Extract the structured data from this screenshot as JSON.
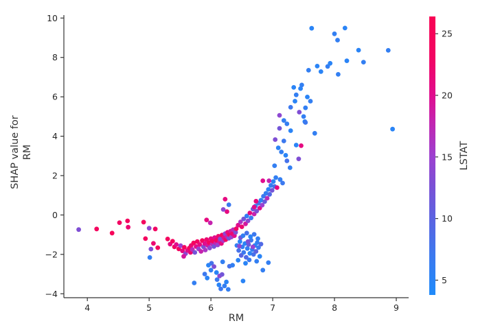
{
  "chart_data": {
    "type": "scatter",
    "title": "",
    "xlabel": "RM",
    "ylabel_line1": "SHAP value for",
    "ylabel_line2": "RM",
    "xlim": [
      3.62,
      9.2
    ],
    "ylim": [
      -4.2,
      10.15
    ],
    "xticks": [
      4,
      5,
      6,
      7,
      8,
      9
    ],
    "yticks": [
      -4,
      -2,
      0,
      2,
      4,
      6,
      8,
      10
    ],
    "grid": false,
    "marker_radius_px": 3.4,
    "text_color": "#333333",
    "spine_color": "#333333",
    "colorbar": {
      "label": "LSTAT",
      "ticks": [
        5,
        10,
        15,
        20,
        25
      ],
      "min": 3.8,
      "max": 26.4,
      "position": "right",
      "stops": [
        [
          3.8,
          "#1f8bfa"
        ],
        [
          7.0,
          "#3c79ef"
        ],
        [
          10.0,
          "#5b63e1"
        ],
        [
          13.0,
          "#7f4ed4"
        ],
        [
          15.0,
          "#9c41d0"
        ],
        [
          18.0,
          "#c523ae"
        ],
        [
          20.0,
          "#e00d8e"
        ],
        [
          23.0,
          "#f20563"
        ],
        [
          26.4,
          "#f80454"
        ]
      ]
    },
    "points_format": [
      "RM",
      "SHAP value for RM",
      "LSTAT"
    ],
    "points": [
      [
        3.86,
        -0.74,
        13
      ],
      [
        4.15,
        -0.71,
        24
      ],
      [
        4.4,
        -0.92,
        25
      ],
      [
        4.52,
        -0.39,
        23
      ],
      [
        4.65,
        -0.3,
        24
      ],
      [
        4.66,
        -0.62,
        22
      ],
      [
        4.91,
        -0.36,
        24
      ],
      [
        5.0,
        -0.67,
        14
      ],
      [
        5.1,
        -0.71,
        23
      ],
      [
        4.94,
        -1.2,
        24
      ],
      [
        5.07,
        -1.44,
        22
      ],
      [
        5.03,
        -1.73,
        13
      ],
      [
        5.14,
        -1.66,
        24
      ],
      [
        5.01,
        -2.16,
        6
      ],
      [
        5.3,
        -1.22,
        24
      ],
      [
        5.34,
        -1.48,
        21
      ],
      [
        5.38,
        -1.33,
        24
      ],
      [
        5.41,
        -1.62,
        23
      ],
      [
        5.44,
        -1.5,
        20
      ],
      [
        5.48,
        -1.72,
        24
      ],
      [
        5.51,
        -1.56,
        15
      ],
      [
        5.54,
        -1.82,
        21
      ],
      [
        5.57,
        -1.64,
        24
      ],
      [
        5.59,
        -1.96,
        14
      ],
      [
        5.62,
        -1.8,
        20
      ],
      [
        5.65,
        -1.68,
        24
      ],
      [
        5.56,
        -2.1,
        19
      ],
      [
        5.67,
        -1.9,
        22
      ],
      [
        5.68,
        -1.55,
        22
      ],
      [
        5.7,
        -1.75,
        17
      ],
      [
        5.72,
        -1.42,
        24
      ],
      [
        5.74,
        -1.9,
        12
      ],
      [
        5.76,
        -1.6,
        20
      ],
      [
        5.78,
        -1.35,
        23
      ],
      [
        5.8,
        -1.72,
        15
      ],
      [
        5.82,
        -1.5,
        21
      ],
      [
        5.84,
        -1.85,
        18
      ],
      [
        5.86,
        -1.3,
        24
      ],
      [
        5.88,
        -1.62,
        13
      ],
      [
        5.9,
        -1.45,
        20
      ],
      [
        5.91,
        -1.78,
        16
      ],
      [
        5.93,
        -1.25,
        22
      ],
      [
        5.95,
        -1.55,
        19
      ],
      [
        5.97,
        -1.4,
        24
      ],
      [
        5.98,
        -1.68,
        14
      ],
      [
        6.0,
        -1.2,
        21
      ],
      [
        6.02,
        -1.48,
        17
      ],
      [
        6.03,
        -1.32,
        23
      ],
      [
        6.05,
        -1.6,
        12
      ],
      [
        6.06,
        -1.15,
        20
      ],
      [
        6.08,
        -1.42,
        18
      ],
      [
        6.09,
        -1.28,
        24
      ],
      [
        6.11,
        -1.52,
        15
      ],
      [
        6.12,
        -1.08,
        22
      ],
      [
        6.14,
        -1.35,
        19
      ],
      [
        6.15,
        -1.22,
        13
      ],
      [
        6.17,
        -1.45,
        21
      ],
      [
        6.18,
        -1.02,
        24
      ],
      [
        6.2,
        -1.3,
        16
      ],
      [
        6.21,
        -1.15,
        20
      ],
      [
        6.23,
        -0.95,
        14
      ],
      [
        6.24,
        -1.25,
        23
      ],
      [
        6.26,
        -1.1,
        18
      ],
      [
        6.27,
        -0.88,
        21
      ],
      [
        6.29,
        -1.18,
        12
      ],
      [
        6.3,
        -1.0,
        24
      ],
      [
        6.32,
        -0.82,
        19
      ],
      [
        6.33,
        -1.12,
        15
      ],
      [
        6.35,
        -0.95,
        22
      ],
      [
        6.36,
        -0.75,
        17
      ],
      [
        6.38,
        -1.05,
        20
      ],
      [
        6.4,
        -0.88,
        13
      ],
      [
        6.41,
        -0.7,
        23
      ],
      [
        6.23,
        0.8,
        21
      ],
      [
        6.26,
        0.17,
        21
      ],
      [
        6.29,
        0.52,
        7
      ],
      [
        6.2,
        0.28,
        14
      ],
      [
        5.93,
        -0.25,
        21
      ],
      [
        5.99,
        -0.4,
        18
      ],
      [
        6.42,
        -1.55,
        6
      ],
      [
        6.45,
        -1.8,
        8
      ],
      [
        6.47,
        -1.35,
        5
      ],
      [
        6.49,
        -2.05,
        10
      ],
      [
        6.51,
        -1.62,
        6
      ],
      [
        6.53,
        -1.9,
        7
      ],
      [
        6.55,
        -1.45,
        5
      ],
      [
        6.57,
        -2.15,
        9
      ],
      [
        6.59,
        -1.7,
        6
      ],
      [
        6.61,
        -1.5,
        11
      ],
      [
        6.63,
        -1.95,
        5
      ],
      [
        6.65,
        -1.28,
        7
      ],
      [
        6.67,
        -1.75,
        6
      ],
      [
        6.69,
        -2.0,
        8
      ],
      [
        6.71,
        -1.55,
        5
      ],
      [
        6.73,
        -1.85,
        10
      ],
      [
        6.75,
        -1.4,
        6
      ],
      [
        6.77,
        -1.65,
        7
      ],
      [
        6.79,
        -2.1,
        5
      ],
      [
        6.81,
        -1.48,
        9
      ],
      [
        6.48,
        -1.15,
        12
      ],
      [
        6.52,
        -1.05,
        6
      ],
      [
        6.58,
        -0.92,
        8
      ],
      [
        6.64,
        -1.1,
        5
      ],
      [
        6.7,
        -0.98,
        7
      ],
      [
        6.76,
        -1.2,
        6
      ],
      [
        6.44,
        -2.3,
        5
      ],
      [
        6.62,
        -2.28,
        7
      ],
      [
        6.74,
        -2.35,
        6
      ],
      [
        6.56,
        -2.45,
        5
      ],
      [
        6.46,
        -1.58,
        14
      ],
      [
        6.6,
        -1.35,
        13
      ],
      [
        6.68,
        -1.62,
        15
      ],
      [
        5.73,
        -3.45,
        6
      ],
      [
        5.9,
        -3.0,
        7
      ],
      [
        5.94,
        -3.2,
        5
      ],
      [
        6.0,
        -2.8,
        6
      ],
      [
        6.01,
        -2.45,
        8
      ],
      [
        6.09,
        -2.92,
        5
      ],
      [
        6.1,
        -3.28,
        7
      ],
      [
        6.14,
        -3.1,
        14
      ],
      [
        6.18,
        -3.02,
        12
      ],
      [
        6.19,
        -2.38,
        6
      ],
      [
        6.13,
        -3.55,
        5
      ],
      [
        6.16,
        -3.75,
        7
      ],
      [
        6.22,
        -3.6,
        6
      ],
      [
        6.25,
        -3.4,
        5
      ],
      [
        6.3,
        -2.6,
        8
      ],
      [
        6.35,
        -2.55,
        6
      ],
      [
        6.52,
        -3.35,
        5
      ],
      [
        6.28,
        -3.78,
        6
      ],
      [
        6.05,
        -2.62,
        13
      ],
      [
        5.96,
        -2.55,
        5
      ],
      [
        6.84,
        -2.8,
        6
      ],
      [
        6.93,
        -2.42,
        6
      ],
      [
        6.44,
        -0.52,
        20
      ],
      [
        6.48,
        -0.35,
        16
      ],
      [
        6.5,
        -0.6,
        22
      ],
      [
        6.53,
        -0.2,
        12
      ],
      [
        6.56,
        -0.45,
        19
      ],
      [
        6.58,
        -0.05,
        6
      ],
      [
        6.6,
        -0.3,
        14
      ],
      [
        6.63,
        0.1,
        21
      ],
      [
        6.65,
        -0.15,
        7
      ],
      [
        6.68,
        0.3,
        11
      ],
      [
        6.7,
        0.05,
        18
      ],
      [
        6.72,
        0.45,
        6
      ],
      [
        6.74,
        0.2,
        13
      ],
      [
        6.77,
        0.6,
        8
      ],
      [
        6.79,
        0.35,
        20
      ],
      [
        6.81,
        0.75,
        5
      ],
      [
        6.83,
        0.5,
        15
      ],
      [
        6.85,
        0.95,
        7
      ],
      [
        6.87,
        0.68,
        11
      ],
      [
        6.89,
        1.1,
        6
      ],
      [
        6.91,
        0.85,
        17
      ],
      [
        6.93,
        1.3,
        5
      ],
      [
        6.95,
        1.05,
        9
      ],
      [
        6.97,
        1.5,
        6
      ],
      [
        6.99,
        1.25,
        12
      ],
      [
        7.01,
        1.7,
        5
      ],
      [
        7.03,
        1.45,
        8
      ],
      [
        7.05,
        1.9,
        6
      ],
      [
        6.84,
        1.74,
        20
      ],
      [
        7.07,
        1.39,
        21
      ],
      [
        7.12,
        1.8,
        6
      ],
      [
        7.16,
        1.62,
        7
      ],
      [
        6.94,
        1.74,
        18
      ],
      [
        6.73,
        0.7,
        21
      ],
      [
        6.7,
        0.4,
        20
      ],
      [
        7.03,
        2.5,
        6
      ],
      [
        7.09,
        3.41,
        5
      ],
      [
        7.04,
        3.83,
        13
      ],
      [
        7.14,
        3.2,
        6
      ],
      [
        7.18,
        3.76,
        7
      ],
      [
        7.21,
        3.03,
        5
      ],
      [
        7.23,
        2.75,
        8
      ],
      [
        7.28,
        2.4,
        6
      ],
      [
        7.38,
        3.55,
        5
      ],
      [
        7.42,
        2.85,
        13
      ],
      [
        7.46,
        3.52,
        21
      ],
      [
        7.68,
        4.15,
        6
      ],
      [
        7.34,
        6.48,
        5
      ],
      [
        7.38,
        6.1,
        6
      ],
      [
        7.36,
        5.78,
        5
      ],
      [
        7.29,
        5.47,
        7
      ],
      [
        7.43,
        5.22,
        13
      ],
      [
        7.53,
        5.44,
        6
      ],
      [
        7.52,
        4.74,
        5
      ],
      [
        7.5,
        5.0,
        6
      ],
      [
        7.53,
        4.7,
        7
      ],
      [
        7.11,
        5.06,
        14
      ],
      [
        7.11,
        4.4,
        12
      ],
      [
        7.23,
        4.63,
        6
      ],
      [
        7.29,
        4.28,
        5
      ],
      [
        7.18,
        4.8,
        6
      ],
      [
        7.56,
        5.99,
        5
      ],
      [
        7.61,
        5.78,
        6
      ],
      [
        7.63,
        9.48,
        5
      ],
      [
        8.0,
        9.2,
        6
      ],
      [
        8.17,
        9.49,
        5
      ],
      [
        8.05,
        8.88,
        6
      ],
      [
        8.39,
        8.37,
        5
      ],
      [
        8.87,
        8.36,
        6
      ],
      [
        8.2,
        7.83,
        5
      ],
      [
        8.47,
        7.76,
        6
      ],
      [
        7.72,
        7.56,
        5
      ],
      [
        7.89,
        7.54,
        6
      ],
      [
        7.93,
        7.7,
        5
      ],
      [
        7.58,
        7.35,
        6
      ],
      [
        7.78,
        7.28,
        5
      ],
      [
        8.06,
        7.14,
        6
      ],
      [
        7.45,
        6.42,
        5
      ],
      [
        7.47,
        6.6,
        6
      ],
      [
        8.94,
        4.36,
        5
      ]
    ]
  }
}
